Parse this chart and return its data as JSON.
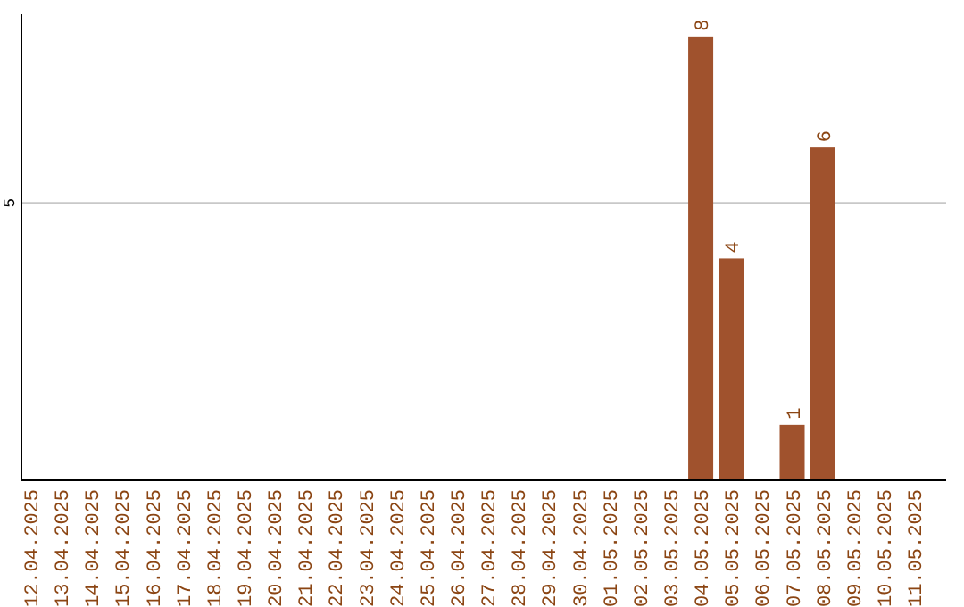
{
  "chart_data": {
    "type": "bar",
    "categories": [
      "12.04.2025",
      "13.04.2025",
      "14.04.2025",
      "15.04.2025",
      "16.04.2025",
      "17.04.2025",
      "18.04.2025",
      "19.04.2025",
      "20.04.2025",
      "21.04.2025",
      "22.04.2025",
      "23.04.2025",
      "24.04.2025",
      "25.04.2025",
      "26.04.2025",
      "27.04.2025",
      "28.04.2025",
      "29.04.2025",
      "30.04.2025",
      "01.05.2025",
      "02.05.2025",
      "03.05.2025",
      "04.05.2025",
      "05.05.2025",
      "06.05.2025",
      "07.05.2025",
      "08.05.2025",
      "09.05.2025",
      "10.05.2025",
      "11.05.2025"
    ],
    "values": [
      null,
      null,
      null,
      null,
      null,
      null,
      null,
      null,
      null,
      null,
      null,
      null,
      null,
      null,
      null,
      null,
      null,
      null,
      null,
      null,
      null,
      null,
      8,
      4,
      null,
      1,
      6,
      null,
      null,
      null
    ],
    "color": "#a0522d",
    "ylim": [
      0,
      8.4
    ],
    "yticks": [
      5
    ],
    "grid": "y",
    "data_labels": true
  }
}
